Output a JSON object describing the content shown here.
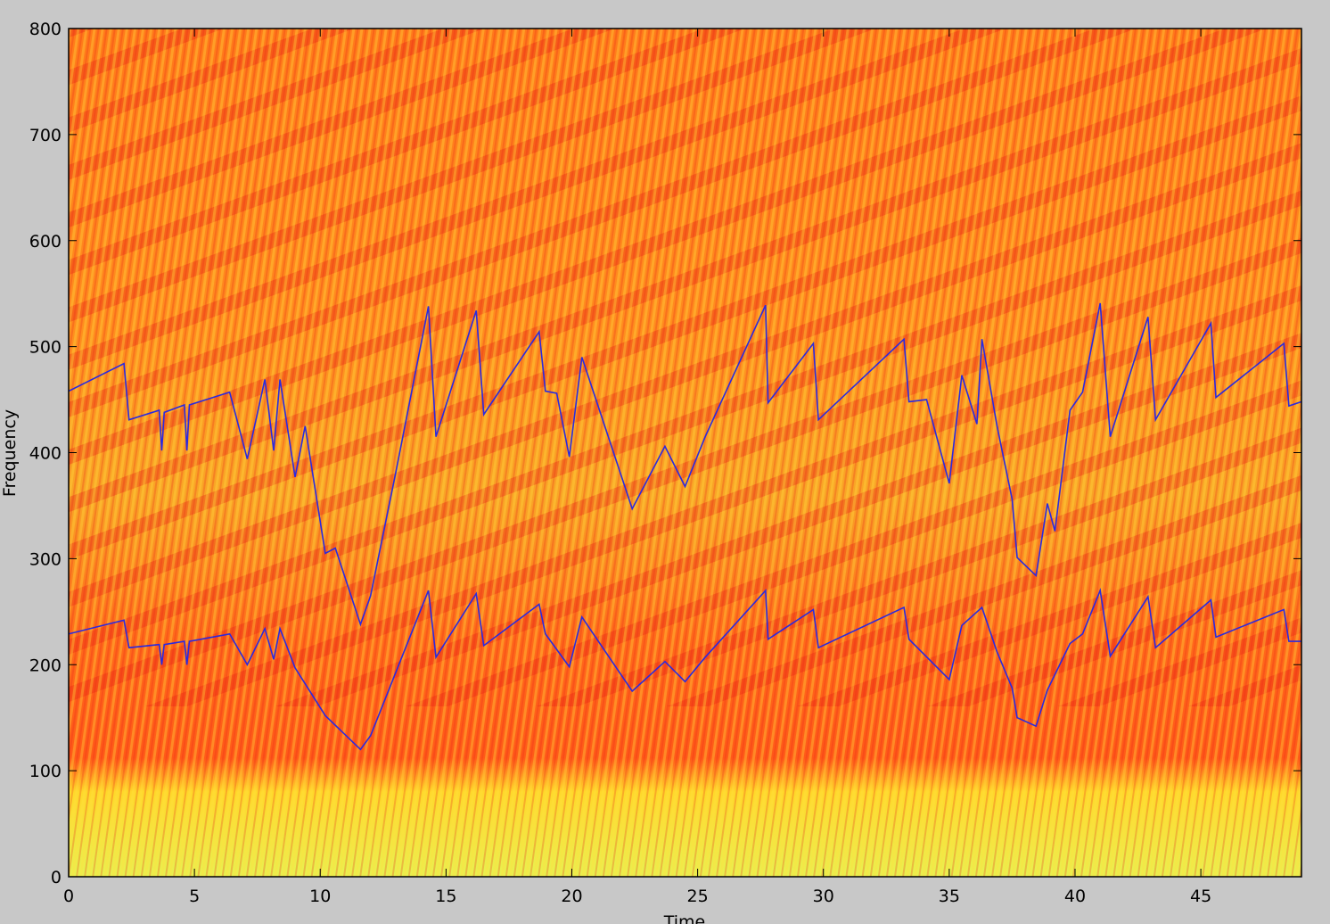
{
  "chart_data": {
    "type": "line",
    "xlabel": "Time",
    "ylabel": "Frequency",
    "xlim": [
      0,
      49
    ],
    "ylim": [
      0,
      800
    ],
    "xticks": [
      0,
      5,
      10,
      15,
      20,
      25,
      30,
      35,
      40,
      45
    ],
    "yticks": [
      0,
      100,
      200,
      300,
      400,
      500,
      600,
      700,
      800
    ],
    "series": [
      {
        "color": "#2a2ae0",
        "x": [
          0,
          2.2,
          2.4,
          3.6,
          3.7,
          3.8,
          4.6,
          4.7,
          4.8,
          6.4,
          7.1,
          7.8,
          8.15,
          8.4,
          9.0,
          9.4,
          10.2,
          10.6,
          11.6,
          12.0,
          13.0,
          14.3,
          14.6,
          16.2,
          16.5,
          18.7,
          18.95,
          19.4,
          19.9,
          20.4,
          22.4,
          23.7,
          24.5,
          25.3,
          27.7,
          27.8,
          29.6,
          29.8,
          33.2,
          33.4,
          34.1,
          35.0,
          35.5,
          36.1,
          36.3,
          36.9,
          37.5,
          37.7,
          38.45,
          38.9,
          39.2,
          39.8,
          40.3,
          41.0,
          41.4,
          42.9,
          43.2,
          45.4,
          45.6,
          48.3,
          48.5,
          49
        ],
        "values": [
          458,
          484,
          431,
          440,
          402,
          438,
          445,
          402,
          445,
          457,
          394,
          469,
          402,
          469,
          377,
          425,
          305,
          310,
          238,
          265,
          381,
          538,
          415,
          534,
          436,
          514,
          458,
          456,
          396,
          490,
          347,
          406,
          368,
          415,
          539,
          447,
          503,
          431,
          507,
          448,
          450,
          371,
          473,
          427,
          507,
          425,
          356,
          301,
          284,
          352,
          326,
          440,
          457,
          541,
          415,
          528,
          431,
          522,
          452,
          503,
          444,
          448
        ]
      },
      {
        "color": "#2a2ae0",
        "x": [
          0,
          2.2,
          2.4,
          3.6,
          3.7,
          3.8,
          4.6,
          4.7,
          4.8,
          6.4,
          7.1,
          7.8,
          8.15,
          8.4,
          9.0,
          10.2,
          11.6,
          12.0,
          14.3,
          14.6,
          16.2,
          16.5,
          18.7,
          18.95,
          19.9,
          20.4,
          22.4,
          23.7,
          24.5,
          25.3,
          27.7,
          27.8,
          29.6,
          29.8,
          33.2,
          33.4,
          35.0,
          35.5,
          36.3,
          36.9,
          37.5,
          37.7,
          38.45,
          38.9,
          39.8,
          40.3,
          41.0,
          41.4,
          42.9,
          43.2,
          45.4,
          45.6,
          48.3,
          48.5,
          49
        ],
        "values": [
          229,
          242,
          216,
          219,
          200,
          219,
          222,
          200,
          222,
          229,
          200,
          234,
          205,
          234,
          197,
          152,
          120,
          133,
          270,
          207,
          267,
          218,
          257,
          229,
          198,
          245,
          175,
          203,
          184,
          207,
          270,
          224,
          252,
          216,
          254,
          224,
          186,
          237,
          254,
          212,
          178,
          150,
          142,
          176,
          220,
          229,
          270,
          208,
          264,
          216,
          261,
          226,
          252,
          222,
          222
        ]
      }
    ]
  }
}
